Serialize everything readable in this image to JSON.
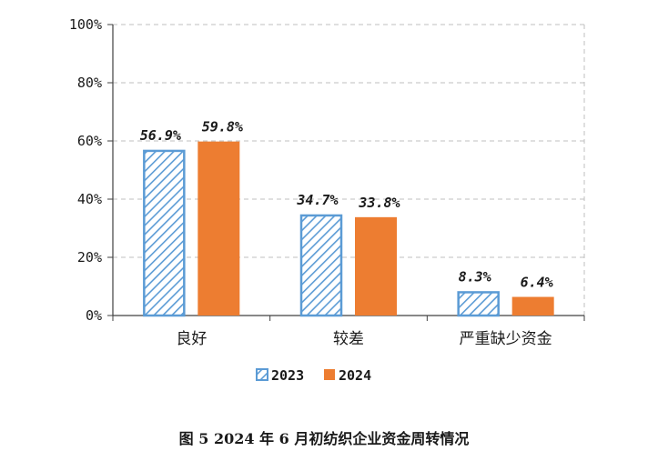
{
  "chart_data": {
    "type": "bar",
    "categories": [
      "良好",
      "较差",
      "严重缺少资金"
    ],
    "series": [
      {
        "name": "2023",
        "values": [
          56.9,
          34.7,
          8.3
        ],
        "labels": [
          "56.9%",
          "34.7%",
          "8.3%"
        ],
        "color": "#5b9bd5",
        "pattern": "diagonal-hatch"
      },
      {
        "name": "2024",
        "values": [
          59.8,
          33.8,
          6.4
        ],
        "labels": [
          "59.8%",
          "33.8%",
          "6.4%"
        ],
        "color": "#ed7d31",
        "pattern": "solid"
      }
    ],
    "yticks": [
      "0%",
      "20%",
      "40%",
      "60%",
      "80%",
      "100%"
    ],
    "ylim": [
      0,
      100
    ],
    "grid": true,
    "legend_position": "bottom"
  },
  "caption": "图 5   2024 年 6 月初纺织企业资金周转情况"
}
